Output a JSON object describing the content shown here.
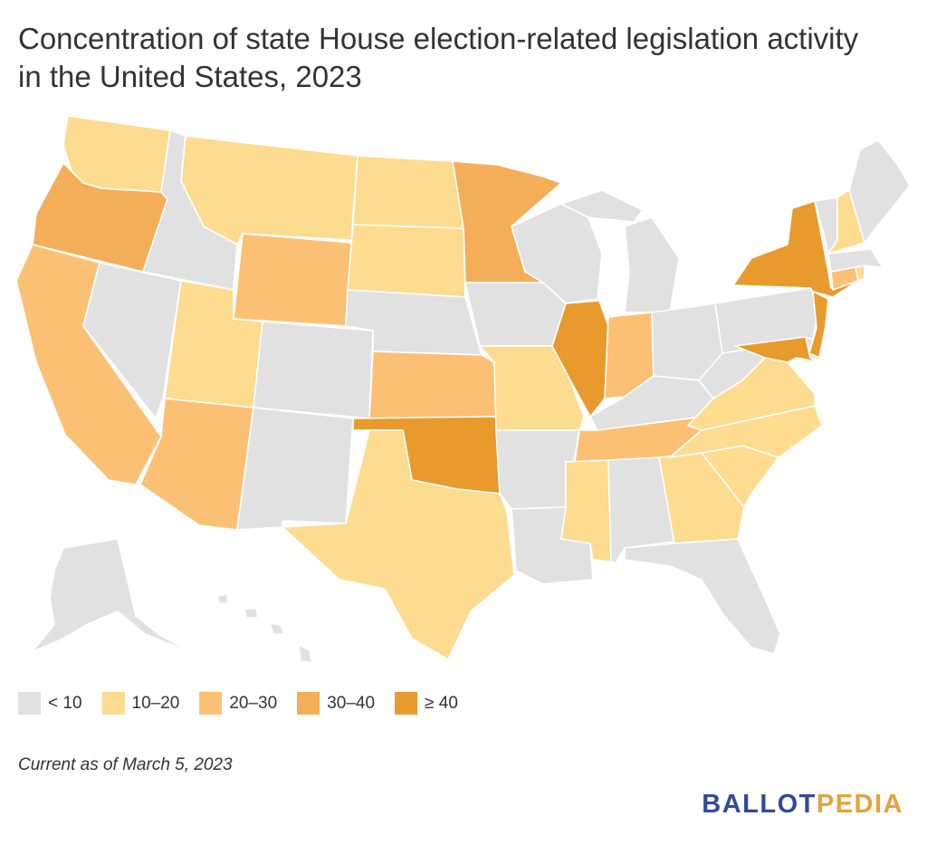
{
  "title": "Concentration of state House election-related legislation activity in the United States, 2023",
  "note": "Current as of March 5, 2023",
  "logo": {
    "part1": "BALLOT",
    "part2": "PEDIA",
    "color1": "#2f4b9b",
    "color2": "#e7a23a"
  },
  "legend": [
    {
      "label": "< 10",
      "color": "#e1e1e1"
    },
    {
      "label": "10–20",
      "color": "#fddb8f"
    },
    {
      "label": "20–30",
      "color": "#fcc074"
    },
    {
      "label": "30–40",
      "color": "#f4ae58"
    },
    {
      "label": "≥ 40",
      "color": "#e99a2c"
    }
  ],
  "states": {
    "WA": 1,
    "OR": 3,
    "CA": 2,
    "ID": 0,
    "NV": 0,
    "MT": 1,
    "WY": 2,
    "UT": 1,
    "AZ": 2,
    "CO": 0,
    "NM": 0,
    "ND": 1,
    "SD": 1,
    "NE": 0,
    "KS": 2,
    "OK": 4,
    "TX": 1,
    "MN": 3,
    "IA": 0,
    "MO": 1,
    "AR": 0,
    "LA": 0,
    "WI": 0,
    "IL": 4,
    "MI": 0,
    "IN": 2,
    "OH": 0,
    "KY": 0,
    "TN": 2,
    "MS": 1,
    "AL": 0,
    "GA": 1,
    "FL": 0,
    "SC": 1,
    "NC": 1,
    "VA": 1,
    "WV": 0,
    "PA": 0,
    "NY": 4,
    "VT": 0,
    "NH": 1,
    "ME": 0,
    "MA": 0,
    "RI": 1,
    "CT": 2,
    "NJ": 4,
    "DE": 0,
    "MD": 4,
    "AK": 0,
    "HI": 0
  }
}
